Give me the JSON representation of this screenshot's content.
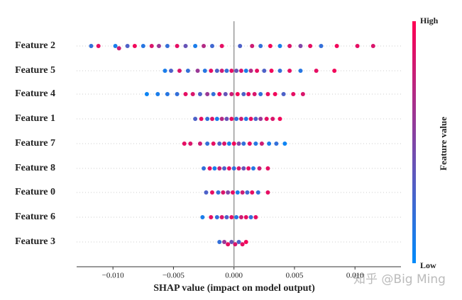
{
  "chart_data": {
    "type": "beeswarm",
    "xlabel": "SHAP value (impact on model output)",
    "categories": [
      "Feature 2",
      "Feature 5",
      "Feature 4",
      "Feature 1",
      "Feature 7",
      "Feature 8",
      "Feature 0",
      "Feature 6",
      "Feature 3"
    ],
    "shap_values": [
      [
        -0.0118,
        -0.0112,
        -0.0098,
        -0.0095,
        -0.0088,
        -0.0082,
        -0.0075,
        -0.0068,
        -0.0062,
        -0.0055,
        -0.0047,
        -0.004,
        -0.0032,
        -0.0025,
        -0.0018,
        -0.001,
        0.0005,
        0.0015,
        0.0022,
        0.003,
        0.0038,
        0.0046,
        0.0055,
        0.0063,
        0.0072,
        0.0085,
        0.0102,
        0.0115
      ],
      [
        -0.0057,
        -0.0052,
        -0.0045,
        -0.0038,
        -0.003,
        -0.0024,
        -0.0019,
        -0.0014,
        -0.001,
        -0.0006,
        -0.0002,
        0.0002,
        0.0006,
        0.001,
        0.0014,
        0.0019,
        0.0025,
        0.0031,
        0.0038,
        0.0046,
        0.0055,
        0.0068,
        0.0083
      ],
      [
        -0.0072,
        -0.0063,
        -0.0055,
        -0.0047,
        -0.004,
        -0.0034,
        -0.0028,
        -0.0022,
        -0.0017,
        -0.0012,
        -0.0007,
        -0.0002,
        0.0003,
        0.0008,
        0.0012,
        0.0017,
        0.0022,
        0.0028,
        0.0034,
        0.0041,
        0.0049,
        0.0057
      ],
      [
        -0.0032,
        -0.0027,
        -0.0022,
        -0.0018,
        -0.0014,
        -0.001,
        -0.0006,
        -0.0002,
        0.0002,
        0.0006,
        0.001,
        0.0014,
        0.0018,
        0.0022,
        0.0027,
        0.0032,
        0.0038
      ],
      [
        -0.0041,
        -0.0036,
        -0.0028,
        -0.0022,
        -0.0017,
        -0.0012,
        -0.0008,
        -0.0004,
        0.0,
        0.0004,
        0.0008,
        0.0013,
        0.0018,
        0.0023,
        0.0029,
        0.0035,
        0.0042
      ],
      [
        -0.0025,
        -0.002,
        -0.0016,
        -0.0012,
        -0.0008,
        -0.0004,
        0.0,
        0.0004,
        0.0008,
        0.0012,
        0.0016,
        0.0021,
        0.0028
      ],
      [
        -0.0023,
        -0.0018,
        -0.0013,
        -0.0009,
        -0.0005,
        -0.0001,
        0.0003,
        0.0007,
        0.0011,
        0.0015,
        0.002,
        0.0028
      ],
      [
        -0.0026,
        -0.0019,
        -0.0014,
        -0.001,
        -0.0006,
        -0.0002,
        0.0002,
        0.0006,
        0.001,
        0.0014,
        0.0018
      ],
      [
        -0.0012,
        -0.0008,
        -0.0005,
        -0.0002,
        0.0001,
        0.0004,
        0.0007,
        0.001
      ]
    ],
    "feature_values": [
      [
        0.2,
        0.9,
        0.1,
        0.8,
        0.3,
        0.95,
        0.15,
        0.85,
        0.6,
        0.2,
        0.9,
        0.4,
        0.1,
        0.7,
        0.25,
        0.9,
        0.3,
        0.8,
        0.2,
        0.95,
        0.1,
        0.85,
        0.5,
        0.9,
        0.2,
        0.95,
        0.9,
        0.85
      ],
      [
        0.1,
        0.3,
        0.85,
        0.2,
        0.6,
        0.15,
        0.9,
        0.3,
        0.8,
        0.2,
        0.9,
        0.4,
        0.85,
        0.1,
        0.7,
        0.9,
        0.3,
        0.95,
        0.2,
        0.9,
        0.15,
        0.9,
        0.95
      ],
      [
        0.05,
        0.1,
        0.15,
        0.2,
        0.9,
        0.85,
        0.3,
        0.6,
        0.2,
        0.9,
        0.4,
        0.8,
        0.95,
        0.3,
        0.9,
        0.85,
        0.2,
        0.9,
        0.95,
        0.3,
        0.9,
        0.85
      ],
      [
        0.3,
        0.9,
        0.2,
        0.85,
        0.1,
        0.7,
        0.4,
        0.9,
        0.2,
        0.8,
        0.15,
        0.9,
        0.3,
        0.6,
        0.9,
        0.85,
        0.95
      ],
      [
        0.9,
        0.85,
        0.8,
        0.2,
        0.9,
        0.3,
        0.85,
        0.1,
        0.95,
        0.5,
        0.2,
        0.9,
        0.15,
        0.8,
        0.1,
        0.2,
        0.05
      ],
      [
        0.2,
        0.9,
        0.1,
        0.8,
        0.3,
        0.9,
        0.2,
        0.85,
        0.4,
        0.9,
        0.15,
        0.8,
        0.9
      ],
      [
        0.3,
        0.9,
        0.2,
        0.85,
        0.5,
        0.9,
        0.1,
        0.8,
        0.25,
        0.9,
        0.2,
        0.9
      ],
      [
        0.1,
        0.9,
        0.2,
        0.85,
        0.3,
        0.9,
        0.15,
        0.8,
        0.9,
        0.2,
        0.9
      ],
      [
        0.2,
        0.6,
        0.9,
        0.4,
        0.85,
        0.3,
        0.9,
        0.95
      ]
    ],
    "colormap": [
      "#008bfb",
      "#ff0052"
    ],
    "colorbar_label": "Feature value",
    "colorbar_high": "High",
    "colorbar_low": "Low",
    "xlim": [
      -0.013,
      0.0138
    ],
    "xticks": [
      {
        "value": -0.01,
        "label": "−0.010"
      },
      {
        "value": -0.005,
        "label": "−0.005"
      },
      {
        "value": 0,
        "label": "0.000"
      },
      0.005,
      {
        "value": 0.01,
        "label": "0.010"
      }
    ],
    "watermark": "知乎 @Big Ming"
  }
}
